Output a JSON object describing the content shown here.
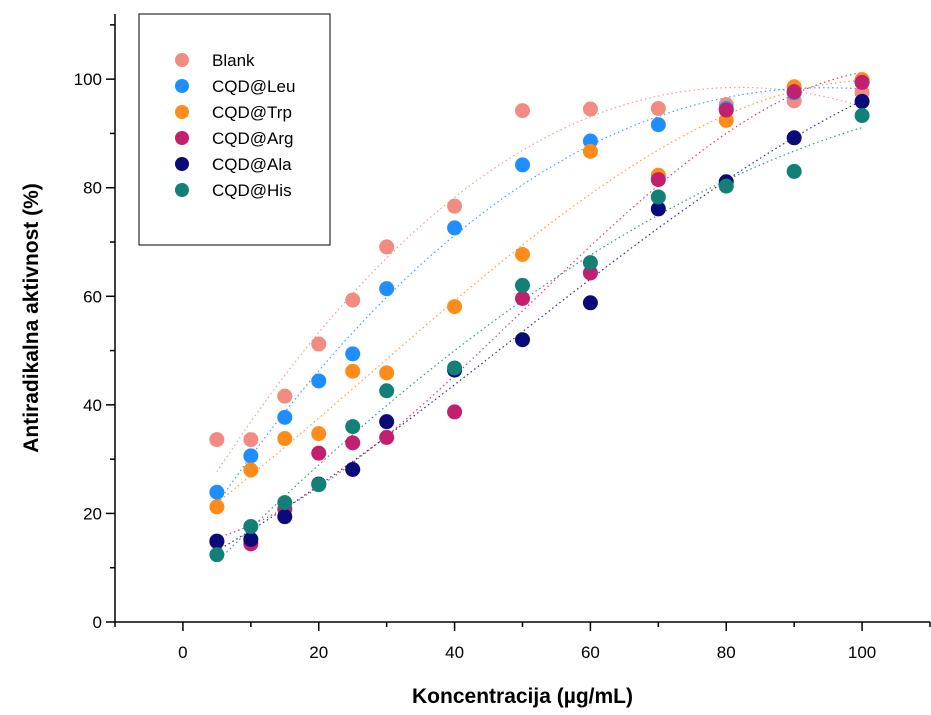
{
  "chart_data": {
    "type": "scatter",
    "title": "",
    "xlabel": "Koncentracija (µg/mL)",
    "ylabel": "Antiradikalna aktivnost (%)",
    "xlim": [
      -10,
      110
    ],
    "ylim": [
      0,
      112
    ],
    "x_ticks": [
      0,
      20,
      40,
      60,
      80,
      100
    ],
    "y_ticks": [
      0,
      20,
      40,
      60,
      80,
      100
    ],
    "grid": false,
    "legend_position": "top-left",
    "x": [
      5,
      10,
      15,
      20,
      25,
      30,
      40,
      50,
      60,
      70,
      80,
      90,
      100
    ],
    "series": [
      {
        "name": "Blank",
        "color": "#f28b82",
        "values": [
          33.6,
          33.6,
          41.6,
          51.2,
          59.3,
          69.1,
          76.6,
          94.2,
          94.5,
          94.6,
          95.3,
          96.0,
          97.5
        ]
      },
      {
        "name": "CQD@Leu",
        "color": "#1f8fff",
        "values": [
          23.9,
          30.6,
          37.7,
          44.4,
          49.4,
          61.4,
          72.6,
          84.2,
          88.6,
          91.6,
          94.6,
          97.5,
          99.6
        ]
      },
      {
        "name": "CQD@Trp",
        "color": "#ff8c1a",
        "values": [
          21.2,
          28.0,
          33.8,
          34.7,
          46.2,
          45.9,
          58.1,
          67.7,
          86.7,
          82.3,
          92.4,
          98.6,
          99.9
        ]
      },
      {
        "name": "CQD@Arg",
        "color": "#c2206e",
        "values": [
          14.8,
          14.4,
          20.8,
          31.1,
          33.0,
          34.0,
          38.7,
          59.6,
          64.3,
          81.5,
          94.3,
          97.7,
          99.4
        ]
      },
      {
        "name": "CQD@Ala",
        "color": "#0a0a7a",
        "values": [
          14.9,
          15.2,
          19.4,
          25.4,
          28.1,
          36.9,
          46.4,
          52.0,
          58.8,
          76.1,
          81.1,
          89.2,
          95.9
        ]
      },
      {
        "name": "CQD@His",
        "color": "#138077",
        "values": [
          12.4,
          17.6,
          22.0,
          25.3,
          36.0,
          42.6,
          46.8,
          62.0,
          66.2,
          78.3,
          80.3,
          83.0,
          93.3
        ]
      }
    ]
  }
}
